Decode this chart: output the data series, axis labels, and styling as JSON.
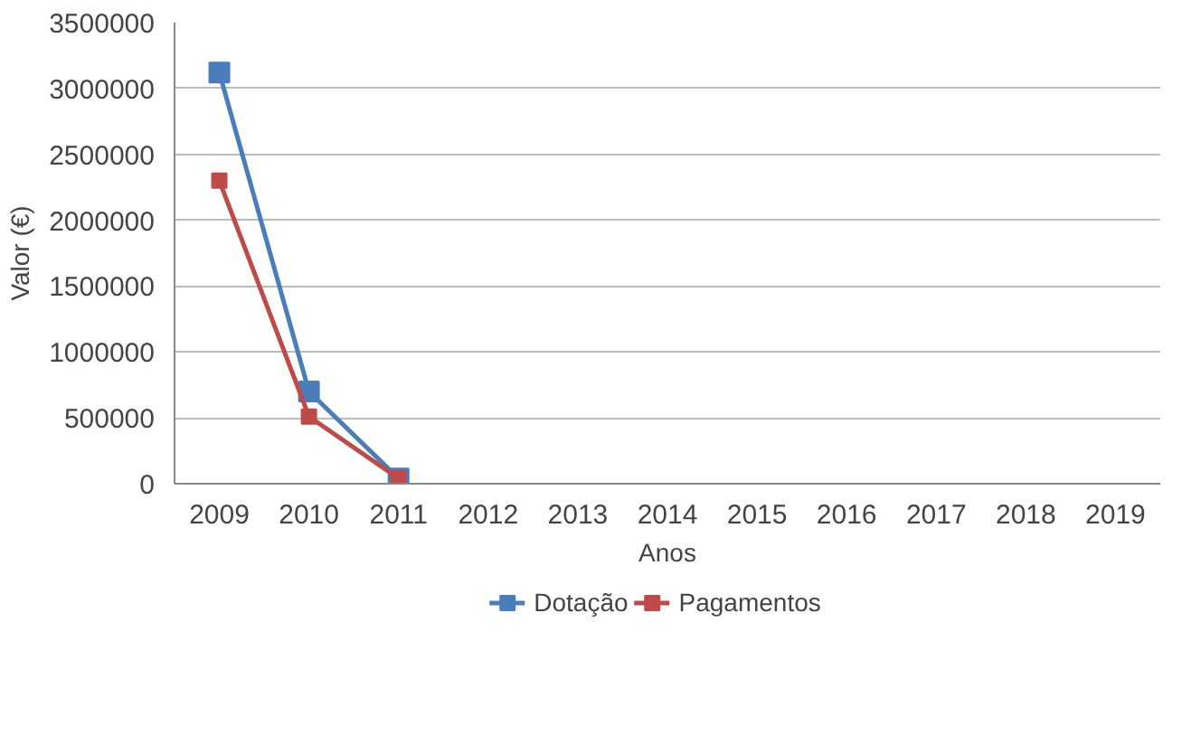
{
  "chart_data": {
    "type": "line",
    "xlabel": "Anos",
    "ylabel": "Valor (€)",
    "categories": [
      "2009",
      "2010",
      "2011",
      "2012",
      "2013",
      "2014",
      "2015",
      "2016",
      "2017",
      "2018",
      "2019"
    ],
    "series": [
      {
        "name": "Dotação",
        "color": "#4a7ebb",
        "values": [
          3120000,
          700000,
          40000,
          null,
          null,
          null,
          null,
          null,
          null,
          null,
          null
        ]
      },
      {
        "name": "Pagamentos",
        "color": "#be4b48",
        "values": [
          2300000,
          510000,
          40000,
          null,
          null,
          null,
          null,
          null,
          null,
          null,
          null
        ]
      }
    ],
    "ylim": [
      0,
      3500000
    ],
    "yticks": [
      0,
      500000,
      1000000,
      1500000,
      2000000,
      2500000,
      3000000,
      3500000
    ],
    "grid": "y",
    "legend": "bottom",
    "marker": "square",
    "line_style": "solid"
  }
}
